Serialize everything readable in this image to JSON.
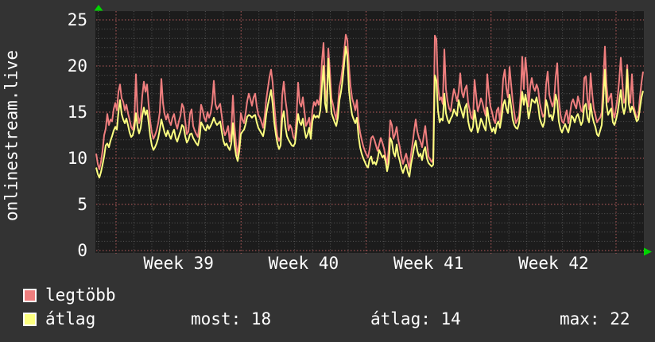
{
  "colors": {
    "background": "#333333",
    "plot_background": "#1c1c1c",
    "grid_minor": "#565656",
    "grid_major": "#b85c5c",
    "text": "#ffffff",
    "arrow": "#00d400",
    "series_legtobb": "#ef7e7e",
    "series_atlag": "#fdff80"
  },
  "legend": {
    "items": [
      {
        "label": "legtöbb",
        "color": "#ef7e7e"
      },
      {
        "label": "átlag",
        "color": "#fdff80"
      }
    ]
  },
  "chart_data": {
    "type": "line",
    "vertical_label": "onlinestream.live",
    "x_tick_labels": [
      "Week 39",
      "Week 40",
      "Week 41",
      "Week 42"
    ],
    "y_ticks": [
      0,
      5,
      10,
      15,
      20,
      25
    ],
    "ylim": [
      0,
      25
    ],
    "grid": true,
    "legend_position": "bottom-left",
    "footer_stats": [
      "most: 18",
      "átlag: 14",
      "max: 22"
    ],
    "series": [
      {
        "name": "legtöbb",
        "color": "#ef7e7e",
        "values": [
          10.5,
          9.4,
          8.8,
          9.6,
          10.8,
          12.5,
          13.2,
          14.8,
          13.6,
          14.2,
          14.0,
          15.3,
          16.0,
          15.2,
          17.2,
          18.0,
          16.5,
          16.1,
          15.2,
          15.8,
          14.9,
          14.2,
          13.4,
          13.1,
          14.0,
          19.1,
          15.0,
          13.8,
          14.5,
          16.8,
          18.3,
          17.2,
          18.0,
          15.8,
          14.0,
          12.8,
          12.1,
          12.5,
          13.0,
          13.8,
          15.0,
          18.6,
          16.0,
          14.8,
          14.2,
          14.8,
          14.0,
          13.6,
          14.4,
          14.8,
          13.8,
          13.2,
          14.0,
          14.6,
          15.9,
          15.5,
          14.0,
          12.6,
          12.9,
          14.8,
          15.3,
          13.5,
          13.0,
          12.6,
          12.3,
          13.8,
          15.8,
          15.2,
          14.4,
          14.0,
          15.0,
          14.4,
          14.9,
          16.0,
          18.4,
          15.9,
          15.3,
          15.6,
          15.9,
          14.6,
          13.2,
          12.5,
          12.9,
          13.5,
          11.8,
          13.0,
          16.8,
          13.5,
          11.5,
          10.3,
          12.0,
          14.9,
          14.2,
          13.8,
          14.9,
          16.2,
          17.0,
          16.4,
          15.7,
          16.6,
          17.0,
          15.6,
          14.7,
          14.4,
          13.9,
          13.3,
          14.6,
          16.4,
          17.6,
          18.8,
          19.6,
          18.2,
          15.9,
          13.8,
          12.4,
          11.9,
          12.3,
          16.8,
          18.3,
          16.4,
          15.1,
          13.0,
          13.6,
          13.2,
          12.3,
          12.0,
          14.5,
          18.2,
          16.0,
          15.6,
          16.6,
          15.1,
          13.5,
          13.9,
          14.4,
          12.8,
          15.2,
          16.1,
          15.7,
          16.3,
          15.8,
          17.0,
          20.5,
          22.5,
          17.5,
          16.2,
          21.9,
          19.5,
          16.5,
          15.8,
          14.9,
          14.2,
          15.6,
          17.7,
          18.5,
          19.8,
          21.6,
          23.4,
          22.8,
          20.0,
          17.8,
          16.5,
          15.9,
          15.2,
          16.3,
          14.0,
          12.8,
          12.0,
          11.3,
          10.8,
          10.4,
          10.1,
          11.0,
          12.2,
          12.4,
          12.0,
          11.4,
          10.8,
          11.5,
          12.2,
          11.7,
          11.1,
          10.2,
          9.3,
          11.0,
          14.1,
          13.6,
          12.1,
          12.6,
          13.4,
          12.0,
          11.2,
          10.1,
          9.4,
          10.0,
          10.5,
          9.6,
          8.9,
          10.4,
          11.6,
          13.0,
          14.2,
          12.9,
          12.2,
          11.8,
          11.2,
          12.4,
          13.5,
          11.8,
          10.2,
          9.9,
          9.6,
          10.0,
          23.3,
          22.9,
          17.8,
          16.3,
          16.6,
          15.9,
          21.8,
          17.5,
          16.2,
          15.4,
          15.1,
          16.4,
          17.5,
          16.9,
          16.2,
          17.2,
          19.2,
          17.2,
          16.6,
          17.5,
          17.9,
          16.0,
          15.2,
          14.4,
          14.2,
          18.5,
          16.8,
          15.1,
          15.7,
          16.5,
          16.0,
          15.2,
          14.6,
          19.1,
          17.0,
          15.6,
          15.0,
          14.2,
          13.8,
          15.2,
          15.5,
          14.0,
          15.8,
          18.6,
          19.6,
          17.6,
          16.6,
          19.9,
          18.0,
          16.2,
          14.9,
          13.8,
          14.2,
          14.6,
          16.8,
          21.0,
          17.5,
          20.9,
          19.0,
          15.6,
          17.8,
          18.7,
          17.7,
          17.3,
          18.0,
          17.5,
          16.0,
          15.2,
          14.5,
          14.8,
          18.0,
          19.4,
          16.9,
          16.2,
          15.6,
          16.2,
          18.8,
          20.3,
          16.4,
          14.8,
          14.0,
          13.8,
          14.6,
          15.2,
          13.8,
          14.8,
          16.0,
          16.4,
          15.8,
          15.4,
          16.7,
          16.0,
          15.2,
          15.0,
          18.7,
          18.9,
          16.4,
          15.3,
          19.2,
          17.0,
          15.4,
          14.7,
          13.9,
          14.2,
          14.4,
          15.0,
          18.5,
          22.1,
          18.0,
          16.1,
          16.6,
          17.0,
          15.0,
          14.4,
          15.5,
          16.6,
          18.5,
          20.9,
          18.1,
          16.0,
          16.5,
          20.1,
          17.0,
          16.0,
          19.1,
          15.7,
          15.0,
          14.4,
          14.6,
          16.6,
          18.2,
          19.4
        ]
      },
      {
        "name": "átlag",
        "color": "#fdff80",
        "values": [
          9.0,
          8.3,
          7.9,
          8.5,
          9.3,
          10.2,
          11.4,
          11.6,
          11.2,
          11.9,
          12.4,
          13.0,
          13.4,
          13.1,
          15.0,
          16.3,
          14.8,
          14.2,
          13.8,
          14.3,
          13.6,
          12.8,
          12.3,
          12.5,
          13.2,
          14.9,
          13.4,
          12.7,
          13.3,
          14.6,
          15.5,
          14.7,
          15.2,
          13.9,
          12.4,
          11.4,
          10.9,
          11.2,
          11.6,
          12.2,
          13.1,
          14.2,
          13.5,
          12.8,
          12.4,
          13.0,
          12.5,
          12.1,
          12.7,
          13.1,
          12.2,
          11.8,
          12.4,
          12.9,
          13.6,
          13.4,
          12.4,
          11.7,
          12.0,
          12.6,
          12.7,
          12.2,
          11.9,
          11.6,
          11.4,
          12.2,
          13.9,
          13.6,
          13.2,
          13.0,
          13.6,
          13.2,
          13.5,
          13.9,
          14.4,
          13.9,
          13.6,
          13.8,
          14.0,
          12.9,
          11.9,
          11.4,
          11.6,
          11.2,
          10.9,
          11.6,
          13.8,
          11.5,
          10.3,
          9.7,
          10.8,
          12.6,
          12.9,
          13.1,
          13.7,
          14.5,
          14.7,
          14.6,
          14.4,
          14.6,
          14.7,
          13.9,
          13.3,
          13.0,
          12.7,
          12.4,
          13.3,
          14.8,
          15.8,
          16.6,
          17.4,
          15.9,
          13.9,
          12.6,
          11.6,
          11.0,
          11.4,
          14.3,
          15.1,
          13.4,
          12.4,
          12.0,
          11.7,
          11.4,
          11.3,
          11.6,
          13.0,
          14.8,
          13.9,
          13.6,
          14.3,
          13.1,
          12.2,
          12.6,
          13.3,
          12.1,
          14.0,
          14.7,
          14.4,
          14.6,
          14.4,
          15.2,
          17.8,
          20.0,
          15.9,
          15.0,
          20.8,
          17.8,
          14.9,
          14.4,
          13.9,
          13.5,
          14.4,
          16.3,
          17.2,
          18.5,
          20.3,
          22.1,
          21.0,
          17.4,
          15.8,
          14.7,
          14.2,
          13.8,
          14.4,
          12.4,
          11.2,
          10.5,
          10.0,
          9.6,
          9.2,
          9.0,
          9.9,
          10.2,
          9.4,
          9.6,
          9.3,
          9.9,
          10.9,
          10.5,
          10.1,
          10.3,
          9.7,
          8.6,
          9.5,
          12.2,
          11.8,
          10.6,
          10.2,
          11.5,
          10.3,
          9.7,
          8.9,
          8.4,
          9.0,
          9.3,
          8.5,
          8.0,
          9.3,
          10.2,
          11.2,
          11.9,
          10.8,
          10.2,
          10.5,
          9.8,
          10.8,
          11.2,
          10.0,
          9.5,
          9.3,
          9.1,
          9.3,
          19.0,
          18.4,
          15.2,
          13.9,
          14.3,
          14.1,
          17.0,
          14.9,
          14.2,
          13.8,
          14.3,
          14.6,
          15.3,
          14.9,
          14.6,
          16.3,
          15.6,
          15.0,
          14.4,
          15.5,
          15.9,
          14.0,
          13.2,
          12.9,
          13.4,
          15.2,
          14.0,
          12.8,
          13.4,
          14.3,
          13.9,
          13.4,
          13.0,
          15.5,
          14.2,
          13.4,
          12.9,
          13.3,
          12.7,
          13.7,
          14.0,
          13.3,
          14.4,
          15.8,
          16.3,
          15.4,
          14.9,
          16.9,
          15.6,
          14.2,
          13.6,
          13.3,
          13.2,
          13.8,
          15.4,
          17.2,
          15.8,
          16.9,
          15.9,
          14.3,
          15.2,
          16.4,
          16.2,
          16.0,
          16.6,
          15.7,
          14.3,
          13.8,
          13.4,
          14.0,
          16.3,
          15.6,
          14.5,
          14.7,
          14.1,
          15.0,
          16.9,
          16.2,
          14.0,
          13.2,
          12.8,
          13.3,
          13.7,
          13.2,
          12.8,
          13.6,
          14.6,
          14.4,
          13.9,
          14.5,
          14.8,
          14.2,
          13.6,
          14.0,
          15.6,
          15.9,
          14.4,
          13.9,
          15.9,
          14.6,
          13.9,
          13.4,
          12.6,
          12.4,
          13.0,
          13.6,
          16.5,
          19.6,
          15.8,
          14.7,
          15.1,
          15.4,
          13.9,
          13.6,
          14.2,
          15.0,
          16.2,
          17.4,
          15.6,
          14.8,
          15.6,
          19.6,
          15.9,
          15.0,
          15.6,
          15.2,
          14.6,
          14.0,
          14.2,
          15.4,
          16.6,
          17.3
        ]
      }
    ]
  }
}
